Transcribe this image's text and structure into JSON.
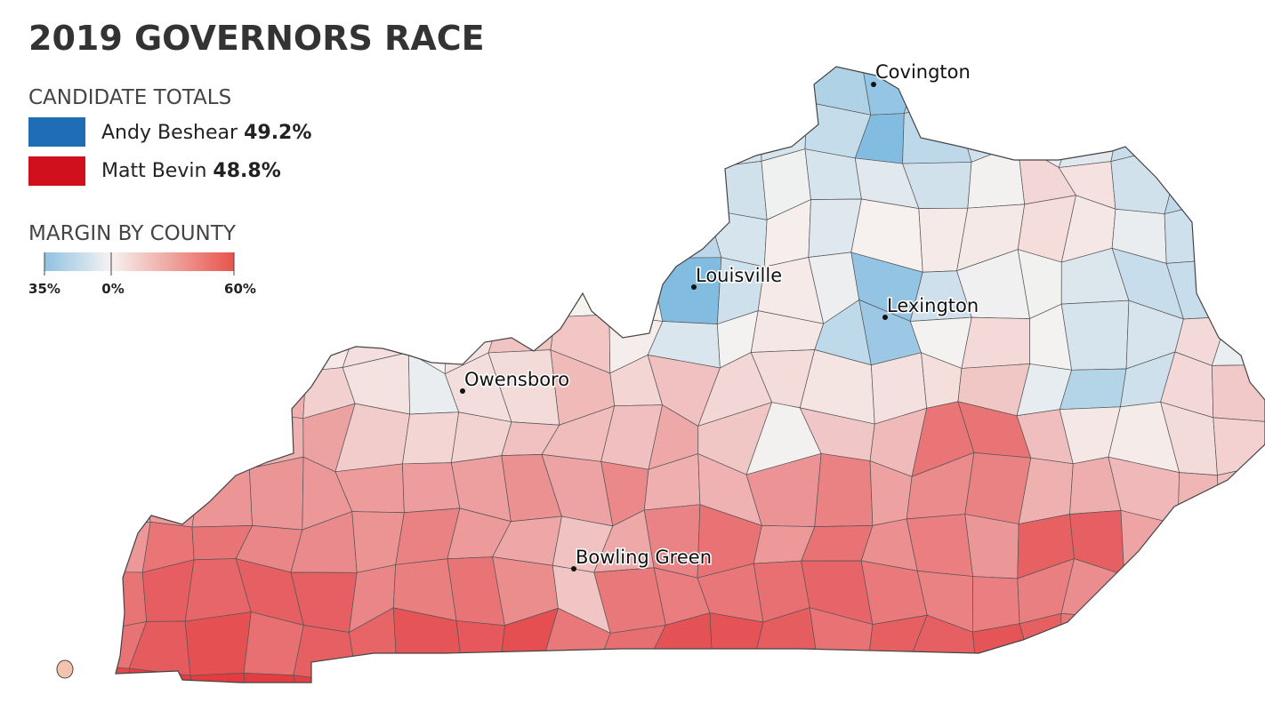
{
  "header": {
    "title": "2019 GOVERNORS RACE"
  },
  "candidate_totals": {
    "heading": "CANDIDATE TOTALS",
    "candidates": [
      {
        "name": "Andy Beshear",
        "share": "49.2%"
      },
      {
        "name": "Matt Bevin",
        "share": "48.8%"
      }
    ]
  },
  "margin_legend": {
    "heading": "MARGIN BY COUNTY",
    "labels": [
      "35%",
      "0%",
      "60%"
    ]
  },
  "cities": [
    "Covington",
    "Louisville",
    "Lexington",
    "Owensboro",
    "Bowling Green"
  ]
}
